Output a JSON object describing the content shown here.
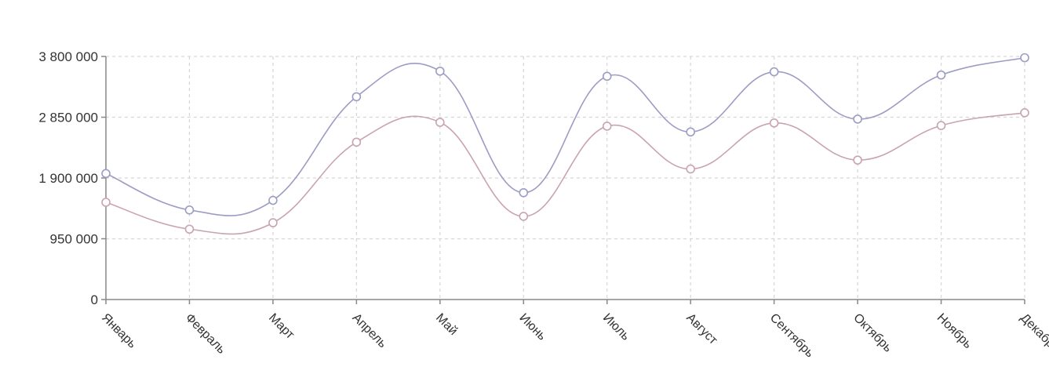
{
  "chart_data": {
    "type": "line",
    "smooth": true,
    "categories": [
      "Январь",
      "Февраль",
      "Март",
      "Апрель",
      "Май",
      "Июнь",
      "Июль",
      "Август",
      "Сентябрь",
      "Октябрь",
      "Ноябрь",
      "Декабрь"
    ],
    "y_ticks": [
      "0",
      "950 000",
      "1 900 000",
      "2 850 000",
      "3 800 000"
    ],
    "ylim": [
      0,
      3800000
    ],
    "grid": true,
    "series": [
      {
        "color": "#9c9cc4",
        "values": [
          1970000,
          1400000,
          1550000,
          3170000,
          3570000,
          1670000,
          3490000,
          2620000,
          3560000,
          2820000,
          3510000,
          3780000
        ]
      },
      {
        "color": "#c9a3b1",
        "values": [
          1520000,
          1100000,
          1200000,
          2460000,
          2770000,
          1300000,
          2710000,
          2040000,
          2760000,
          2180000,
          2720000,
          2920000
        ]
      }
    ]
  }
}
